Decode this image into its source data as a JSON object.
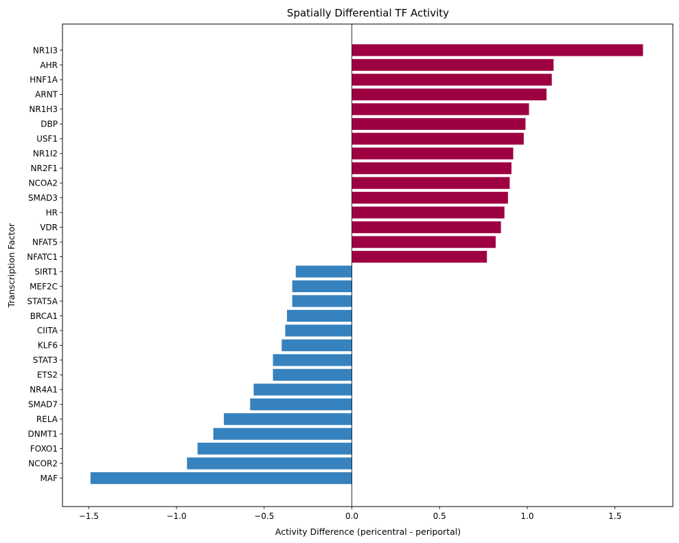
{
  "chart_data": {
    "type": "bar",
    "orientation": "horizontal",
    "title": "Spatially Differential TF Activity",
    "xlabel": "Activity Difference (pericentral - periportal)",
    "ylabel": "Transcription Factor",
    "xlim": [
      -1.65,
      1.83
    ],
    "xticks": [
      -1.5,
      -1.0,
      -0.5,
      0.0,
      0.5,
      1.0,
      1.5
    ],
    "xtick_labels": [
      "−1.5",
      "−1.0",
      "−0.5",
      "0.0",
      "0.5",
      "1.0",
      "1.5"
    ],
    "grid": false,
    "zero_line": true,
    "colors": {
      "positive": "#9e0142",
      "negative": "#3682be"
    },
    "categories": [
      "NR1I3",
      "AHR",
      "HNF1A",
      "ARNT",
      "NR1H3",
      "DBP",
      "USF1",
      "NR1I2",
      "NR2F1",
      "NCOA2",
      "SMAD3",
      "HR",
      "VDR",
      "NFAT5",
      "NFATC1",
      "SIRT1",
      "MEF2C",
      "STAT5A",
      "BRCA1",
      "CIITA",
      "KLF6",
      "STAT3",
      "ETS2",
      "NR4A1",
      "SMAD7",
      "RELA",
      "DNMT1",
      "FOXO1",
      "NCOR2",
      "MAF"
    ],
    "values": [
      1.66,
      1.15,
      1.14,
      1.11,
      1.01,
      0.99,
      0.98,
      0.92,
      0.91,
      0.9,
      0.89,
      0.87,
      0.85,
      0.82,
      0.77,
      -0.32,
      -0.34,
      -0.34,
      -0.37,
      -0.38,
      -0.4,
      -0.45,
      -0.45,
      -0.56,
      -0.58,
      -0.73,
      -0.79,
      -0.88,
      -0.94,
      -1.49
    ]
  }
}
